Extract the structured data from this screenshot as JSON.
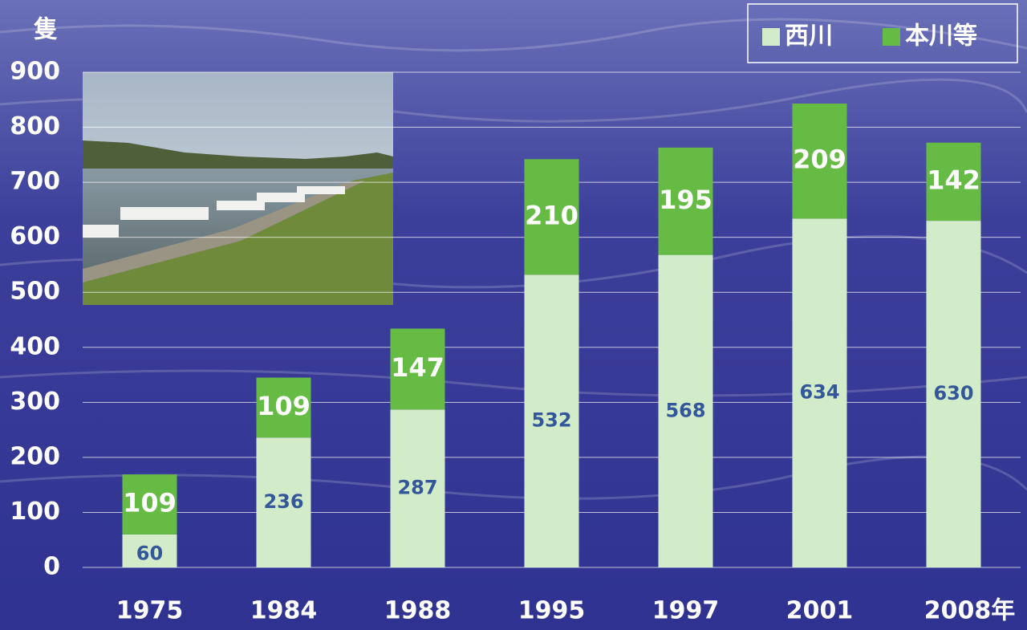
{
  "chart_data": {
    "type": "stacked-bar",
    "y_label": "隻",
    "categories": [
      "1975",
      "1984",
      "1988",
      "1995",
      "1997",
      "2001",
      "2008年"
    ],
    "series": [
      {
        "name": "西川",
        "color": "#d2ebc9",
        "label_color": "#34579a",
        "values": [
          60,
          236,
          287,
          532,
          568,
          634,
          630
        ]
      },
      {
        "name": "本川等",
        "color": "#66bb44",
        "label_color": "#ffffff",
        "values": [
          109,
          109,
          147,
          210,
          195,
          209,
          142
        ]
      }
    ],
    "ylim": [
      0,
      900
    ],
    "yticks": [
      0,
      100,
      200,
      300,
      400,
      500,
      600,
      700,
      800,
      900
    ],
    "grid": true
  }
}
